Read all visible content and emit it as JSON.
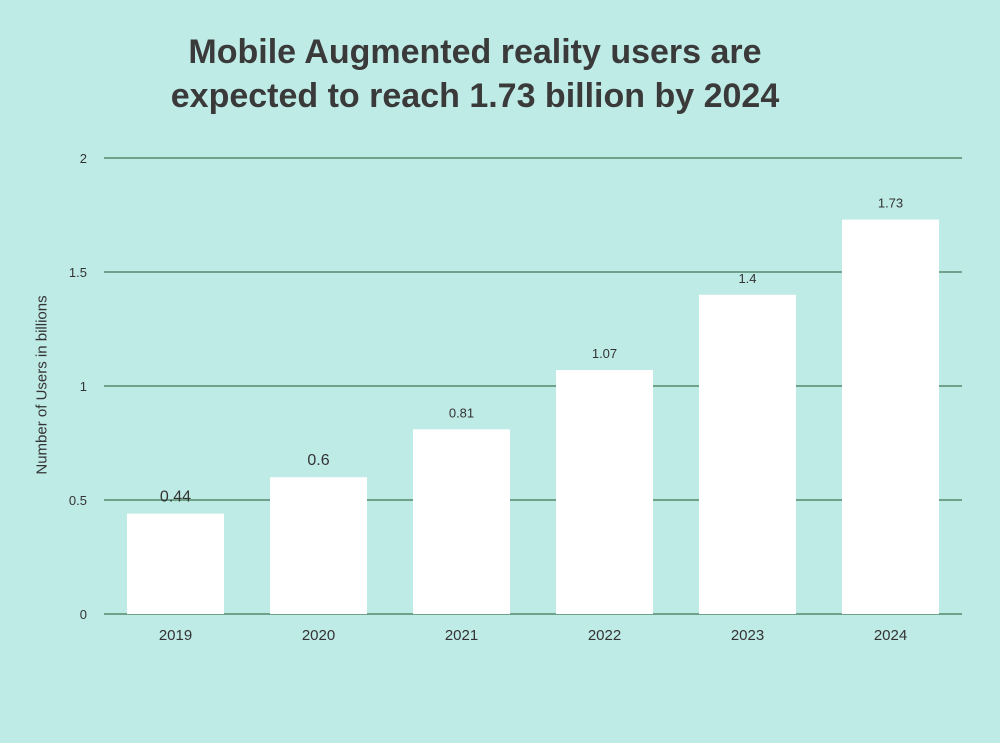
{
  "chart_data": {
    "type": "bar",
    "title_lines": [
      "Mobile Augmented reality users are",
      "expected to reach 1.73 billion by 2024"
    ],
    "xlabel": "",
    "ylabel": "Number of Users in billions",
    "categories": [
      "2019",
      "2020",
      "2021",
      "2022",
      "2023",
      "2024"
    ],
    "values": [
      0.44,
      0.6,
      0.81,
      1.07,
      1.4,
      1.73
    ],
    "data_labels": [
      "0.44",
      "0.6",
      "0.81",
      "1.07",
      "1.4",
      "1.73"
    ],
    "ylim": [
      0,
      2
    ],
    "yticks": [
      0,
      0.5,
      1,
      1.5,
      2
    ],
    "ytick_labels": [
      "0",
      "0.5",
      "1",
      "1.5",
      "2"
    ],
    "grid": true,
    "legend": "none",
    "colors": {
      "background": "#bfebe6",
      "bar": "#ffffff",
      "gridline": "#1f5a2f",
      "text": "#333333"
    }
  }
}
